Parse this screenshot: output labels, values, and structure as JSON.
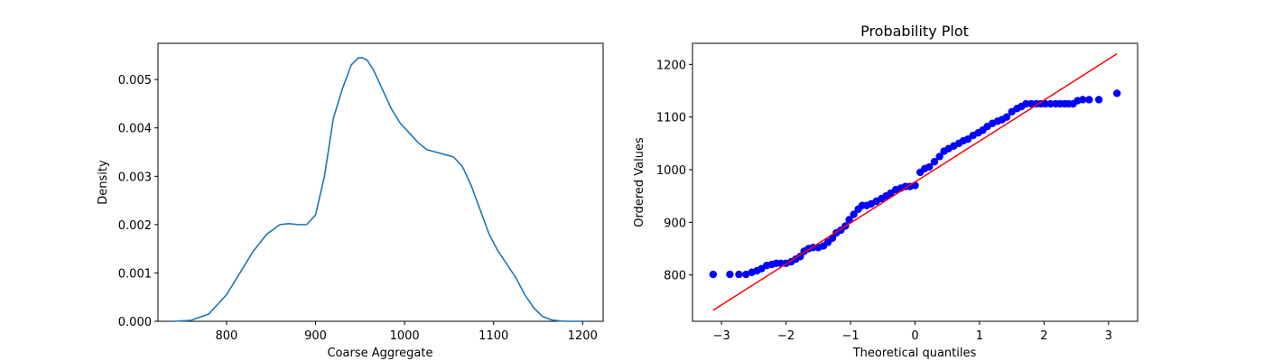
{
  "chart_data": [
    {
      "type": "line",
      "title": "",
      "xlabel": "Coarse Aggregate",
      "ylabel": "Density",
      "xlim": [
        723,
        1223
      ],
      "ylim": [
        0,
        0.00575
      ],
      "xticks": [
        800,
        900,
        1000,
        1100,
        1200
      ],
      "yticks": [
        0.0,
        0.001,
        0.002,
        0.003,
        0.004,
        0.005
      ],
      "ytick_labels": [
        "0.000",
        "0.001",
        "0.002",
        "0.003",
        "0.004",
        "0.005"
      ],
      "grid": false,
      "colors": {
        "line": "#1f77b4"
      },
      "series": [
        {
          "x": [
            740,
            760,
            780,
            800,
            815,
            830,
            845,
            860,
            870,
            880,
            890,
            900,
            910,
            920,
            930,
            940,
            948,
            953,
            958,
            965,
            975,
            985,
            995,
            1005,
            1015,
            1025,
            1035,
            1045,
            1055,
            1065,
            1075,
            1085,
            1095,
            1105,
            1115,
            1125,
            1135,
            1145,
            1155,
            1165,
            1175,
            1185,
            1195,
            1205
          ],
          "y": [
            0.0,
            2e-05,
            0.00015,
            0.00055,
            0.001,
            0.00145,
            0.0018,
            0.002,
            0.00202,
            0.002,
            0.002,
            0.0022,
            0.003,
            0.0042,
            0.0048,
            0.0053,
            0.00545,
            0.00545,
            0.0054,
            0.0052,
            0.0048,
            0.0044,
            0.0041,
            0.0039,
            0.0037,
            0.00355,
            0.0035,
            0.00345,
            0.0034,
            0.0032,
            0.0028,
            0.0023,
            0.0018,
            0.00145,
            0.00118,
            0.0009,
            0.00055,
            0.00028,
            0.0001,
            3e-05,
            5e-06,
            0.0,
            0.0,
            0.0
          ]
        }
      ]
    },
    {
      "type": "scatter",
      "title": "Probability Plot",
      "xlabel": "Theoretical quantiles",
      "ylabel": "Ordered Values",
      "xlim": [
        -3.45,
        3.45
      ],
      "ylim": [
        712,
        1240
      ],
      "xticks": [
        -3,
        -2,
        -1,
        0,
        1,
        2,
        3
      ],
      "xtick_labels": [
        "−3",
        "−2",
        "−1",
        "0",
        "1",
        "2",
        "3"
      ],
      "yticks": [
        800,
        900,
        1000,
        1100,
        1200
      ],
      "grid": false,
      "colors": {
        "points": "#0000ff",
        "fit_line": "#ff0000"
      },
      "fit_line": {
        "x": [
          -3.13,
          3.13
        ],
        "y": [
          733,
          1220
        ]
      },
      "points": {
        "x": [
          -3.13,
          -2.87,
          -2.73,
          -2.62,
          -2.53,
          -2.45,
          -2.38,
          -2.3,
          -2.22,
          -2.15,
          -2.08,
          -2.0,
          -1.92,
          -1.85,
          -1.78,
          -1.72,
          -1.65,
          -1.58,
          -1.5,
          -1.42,
          -1.35,
          -1.28,
          -1.22,
          -1.15,
          -1.08,
          -1.02,
          -0.95,
          -0.88,
          -0.82,
          -0.75,
          -0.68,
          -0.6,
          -0.52,
          -0.45,
          -0.38,
          -0.3,
          -0.22,
          -0.15,
          -0.08,
          0.0,
          0.08,
          0.15,
          0.22,
          0.3,
          0.38,
          0.45,
          0.52,
          0.6,
          0.68,
          0.75,
          0.82,
          0.9,
          0.98,
          1.05,
          1.12,
          1.2,
          1.28,
          1.35,
          1.42,
          1.5,
          1.58,
          1.65,
          1.72,
          1.8,
          1.88,
          1.95,
          2.02,
          2.1,
          2.18,
          2.25,
          2.32,
          2.38,
          2.45,
          2.52,
          2.6,
          2.7,
          2.85,
          3.13
        ],
        "y": [
          801,
          801,
          801,
          801,
          805,
          808,
          812,
          818,
          820,
          822,
          822,
          822,
          825,
          830,
          835,
          845,
          850,
          852,
          852,
          855,
          862,
          870,
          880,
          885,
          893,
          905,
          915,
          925,
          932,
          932,
          935,
          940,
          945,
          950,
          955,
          962,
          965,
          968,
          968,
          970,
          995,
          1002,
          1005,
          1015,
          1025,
          1035,
          1040,
          1045,
          1050,
          1055,
          1058,
          1065,
          1070,
          1075,
          1082,
          1088,
          1092,
          1095,
          1100,
          1110,
          1116,
          1120,
          1125,
          1125,
          1125,
          1125,
          1125,
          1125,
          1125,
          1125,
          1125,
          1125,
          1125,
          1131,
          1133,
          1133,
          1133,
          1145
        ]
      }
    }
  ]
}
